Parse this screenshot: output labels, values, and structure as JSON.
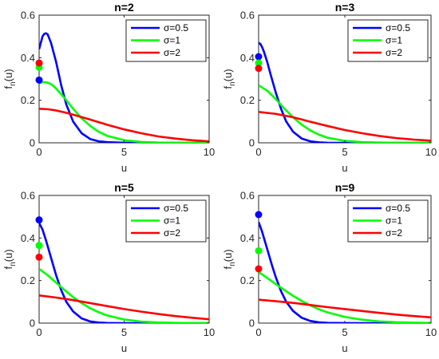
{
  "figure": {
    "background": "#ffffff",
    "axis_color": "#262626",
    "legend_font": "DejaVu Serif"
  },
  "chart_data": [
    {
      "type": "line",
      "title": "n=2",
      "xlabel": "u",
      "ylabel": "f_n(u)",
      "xlim": [
        0,
        10
      ],
      "ylim": [
        0,
        0.6
      ],
      "xticks": [
        0,
        5,
        10
      ],
      "yticks": [
        0,
        0.2,
        0.4,
        0.6
      ],
      "grid": false,
      "legend_position": "top-right",
      "series": [
        {
          "name": "σ=0.5",
          "color": "#0000ff",
          "x": [
            0,
            0.1,
            0.2,
            0.3,
            0.4,
            0.5,
            0.7,
            1.0,
            1.3,
            1.6,
            2.0,
            2.5,
            3.0,
            3.5,
            4.0,
            5.0,
            6.0,
            7.0,
            8.0,
            9.0,
            10.0
          ],
          "y": [
            0.44,
            0.47,
            0.5,
            0.512,
            0.515,
            0.51,
            0.47,
            0.38,
            0.27,
            0.18,
            0.1,
            0.045,
            0.018,
            0.007,
            0.003,
            0.0005,
            0,
            0,
            0,
            0,
            0
          ],
          "marker": {
            "x": 0,
            "y": 0.295
          }
        },
        {
          "name": "σ=1",
          "color": "#00ff00",
          "x": [
            0,
            0.2,
            0.4,
            0.6,
            0.8,
            1.0,
            1.5,
            2.0,
            2.5,
            3.0,
            3.5,
            4.0,
            5.0,
            6.0,
            7.0,
            8.0,
            9.0,
            10.0
          ],
          "y": [
            0.28,
            0.285,
            0.285,
            0.28,
            0.27,
            0.255,
            0.21,
            0.16,
            0.115,
            0.08,
            0.052,
            0.033,
            0.012,
            0.004,
            0.0012,
            0.0003,
            0.0001,
            0
          ],
          "marker": {
            "x": 0,
            "y": 0.355
          }
        },
        {
          "name": "σ=2",
          "color": "#ff0000",
          "x": [
            0,
            0.5,
            1.0,
            1.5,
            2.0,
            3.0,
            4.0,
            5.0,
            6.0,
            7.0,
            8.0,
            9.0,
            10.0
          ],
          "y": [
            0.16,
            0.158,
            0.152,
            0.143,
            0.132,
            0.109,
            0.085,
            0.063,
            0.045,
            0.03,
            0.02,
            0.012,
            0.007
          ],
          "marker": {
            "x": 0,
            "y": 0.375
          }
        }
      ]
    },
    {
      "type": "line",
      "title": "n=3",
      "xlabel": "u",
      "ylabel": "f_n(u)",
      "xlim": [
        0,
        10
      ],
      "ylim": [
        0,
        0.6
      ],
      "xticks": [
        0,
        5,
        10
      ],
      "yticks": [
        0,
        0.2,
        0.4,
        0.6
      ],
      "grid": false,
      "legend_position": "top-right",
      "series": [
        {
          "name": "σ=0.5",
          "color": "#0000ff",
          "x": [
            0,
            0.1,
            0.2,
            0.3,
            0.5,
            0.7,
            1.0,
            1.3,
            1.6,
            2.0,
            2.5,
            3.0,
            3.5,
            4.0,
            5.0,
            6.0,
            7.0,
            8.0,
            9.0,
            10.0
          ],
          "y": [
            0.47,
            0.465,
            0.45,
            0.43,
            0.38,
            0.32,
            0.235,
            0.16,
            0.1,
            0.052,
            0.02,
            0.007,
            0.002,
            0.0005,
            0,
            0,
            0,
            0,
            0,
            0
          ],
          "marker": {
            "x": 0,
            "y": 0.405
          }
        },
        {
          "name": "σ=1",
          "color": "#00ff00",
          "x": [
            0,
            0.5,
            1.0,
            1.5,
            2.0,
            2.5,
            3.0,
            3.5,
            4.0,
            5.0,
            6.0,
            7.0,
            8.0,
            9.0,
            10.0
          ],
          "y": [
            0.27,
            0.245,
            0.205,
            0.16,
            0.12,
            0.085,
            0.058,
            0.038,
            0.024,
            0.009,
            0.003,
            0.001,
            0.0003,
            0.0001,
            0
          ],
          "marker": {
            "x": 0,
            "y": 0.375
          }
        },
        {
          "name": "σ=2",
          "color": "#ff0000",
          "x": [
            0,
            1.0,
            2.0,
            3.0,
            4.0,
            5.0,
            6.0,
            7.0,
            8.0,
            9.0,
            10.0
          ],
          "y": [
            0.145,
            0.136,
            0.12,
            0.099,
            0.079,
            0.06,
            0.045,
            0.032,
            0.022,
            0.015,
            0.01
          ],
          "marker": {
            "x": 0,
            "y": 0.35
          }
        }
      ]
    },
    {
      "type": "line",
      "title": "n=5",
      "xlabel": "u",
      "ylabel": "f_n(u)",
      "xlim": [
        0,
        10
      ],
      "ylim": [
        0,
        0.6
      ],
      "xticks": [
        0,
        5,
        10
      ],
      "yticks": [
        0,
        0.2,
        0.4,
        0.6
      ],
      "grid": false,
      "legend_position": "top-right",
      "series": [
        {
          "name": "σ=0.5",
          "color": "#0000ff",
          "x": [
            0,
            0.2,
            0.4,
            0.6,
            0.8,
            1.0,
            1.3,
            1.6,
            2.0,
            2.5,
            3.0,
            3.5,
            4.0,
            5.0,
            6.0,
            7.0,
            8.0,
            9.0,
            10.0
          ],
          "y": [
            0.47,
            0.44,
            0.39,
            0.335,
            0.28,
            0.225,
            0.155,
            0.1,
            0.055,
            0.022,
            0.008,
            0.0025,
            0.0007,
            0,
            0,
            0,
            0,
            0,
            0
          ],
          "marker": {
            "x": 0,
            "y": 0.485
          }
        },
        {
          "name": "σ=1",
          "color": "#00ff00",
          "x": [
            0,
            0.5,
            1.0,
            1.5,
            2.0,
            2.5,
            3.0,
            3.5,
            4.0,
            5.0,
            6.0,
            7.0,
            8.0,
            9.0,
            10.0
          ],
          "y": [
            0.255,
            0.225,
            0.19,
            0.155,
            0.122,
            0.094,
            0.07,
            0.051,
            0.036,
            0.017,
            0.007,
            0.003,
            0.0012,
            0.0005,
            0.0002
          ],
          "marker": {
            "x": 0,
            "y": 0.365
          }
        },
        {
          "name": "σ=2",
          "color": "#ff0000",
          "x": [
            0,
            1.0,
            2.0,
            3.0,
            4.0,
            5.0,
            6.0,
            7.0,
            8.0,
            9.0,
            10.0
          ],
          "y": [
            0.13,
            0.12,
            0.108,
            0.094,
            0.08,
            0.066,
            0.054,
            0.043,
            0.033,
            0.025,
            0.018
          ],
          "marker": {
            "x": 0,
            "y": 0.31
          }
        }
      ]
    },
    {
      "type": "line",
      "title": "n=9",
      "xlabel": "u",
      "ylabel": "f_n(u)",
      "xlim": [
        0,
        10
      ],
      "ylim": [
        0,
        0.6
      ],
      "xticks": [
        0,
        5,
        10
      ],
      "yticks": [
        0,
        0.2,
        0.4,
        0.6
      ],
      "grid": false,
      "legend_position": "top-right",
      "series": [
        {
          "name": "σ=0.5",
          "color": "#0000ff",
          "x": [
            0,
            0.2,
            0.4,
            0.6,
            0.8,
            1.0,
            1.3,
            1.6,
            2.0,
            2.5,
            3.0,
            3.5,
            4.0,
            5.0,
            6.0,
            7.0,
            8.0,
            9.0,
            10.0
          ],
          "y": [
            0.475,
            0.43,
            0.375,
            0.32,
            0.265,
            0.215,
            0.15,
            0.1,
            0.057,
            0.025,
            0.01,
            0.0035,
            0.0012,
            0.0001,
            0,
            0,
            0,
            0,
            0
          ],
          "marker": {
            "x": 0,
            "y": 0.51
          }
        },
        {
          "name": "σ=1",
          "color": "#00ff00",
          "x": [
            0,
            0.5,
            1.0,
            1.5,
            2.0,
            2.5,
            3.0,
            3.5,
            4.0,
            5.0,
            6.0,
            7.0,
            8.0,
            9.0,
            10.0
          ],
          "y": [
            0.24,
            0.212,
            0.183,
            0.155,
            0.128,
            0.104,
            0.083,
            0.065,
            0.05,
            0.029,
            0.016,
            0.008,
            0.004,
            0.002,
            0.0009
          ],
          "marker": {
            "x": 0,
            "y": 0.34
          }
        },
        {
          "name": "σ=2",
          "color": "#ff0000",
          "x": [
            0,
            1.0,
            2.0,
            3.0,
            4.0,
            5.0,
            6.0,
            7.0,
            8.0,
            9.0,
            10.0
          ],
          "y": [
            0.11,
            0.103,
            0.095,
            0.085,
            0.075,
            0.066,
            0.057,
            0.048,
            0.04,
            0.033,
            0.027
          ],
          "marker": {
            "x": 0,
            "y": 0.255
          }
        }
      ]
    }
  ]
}
